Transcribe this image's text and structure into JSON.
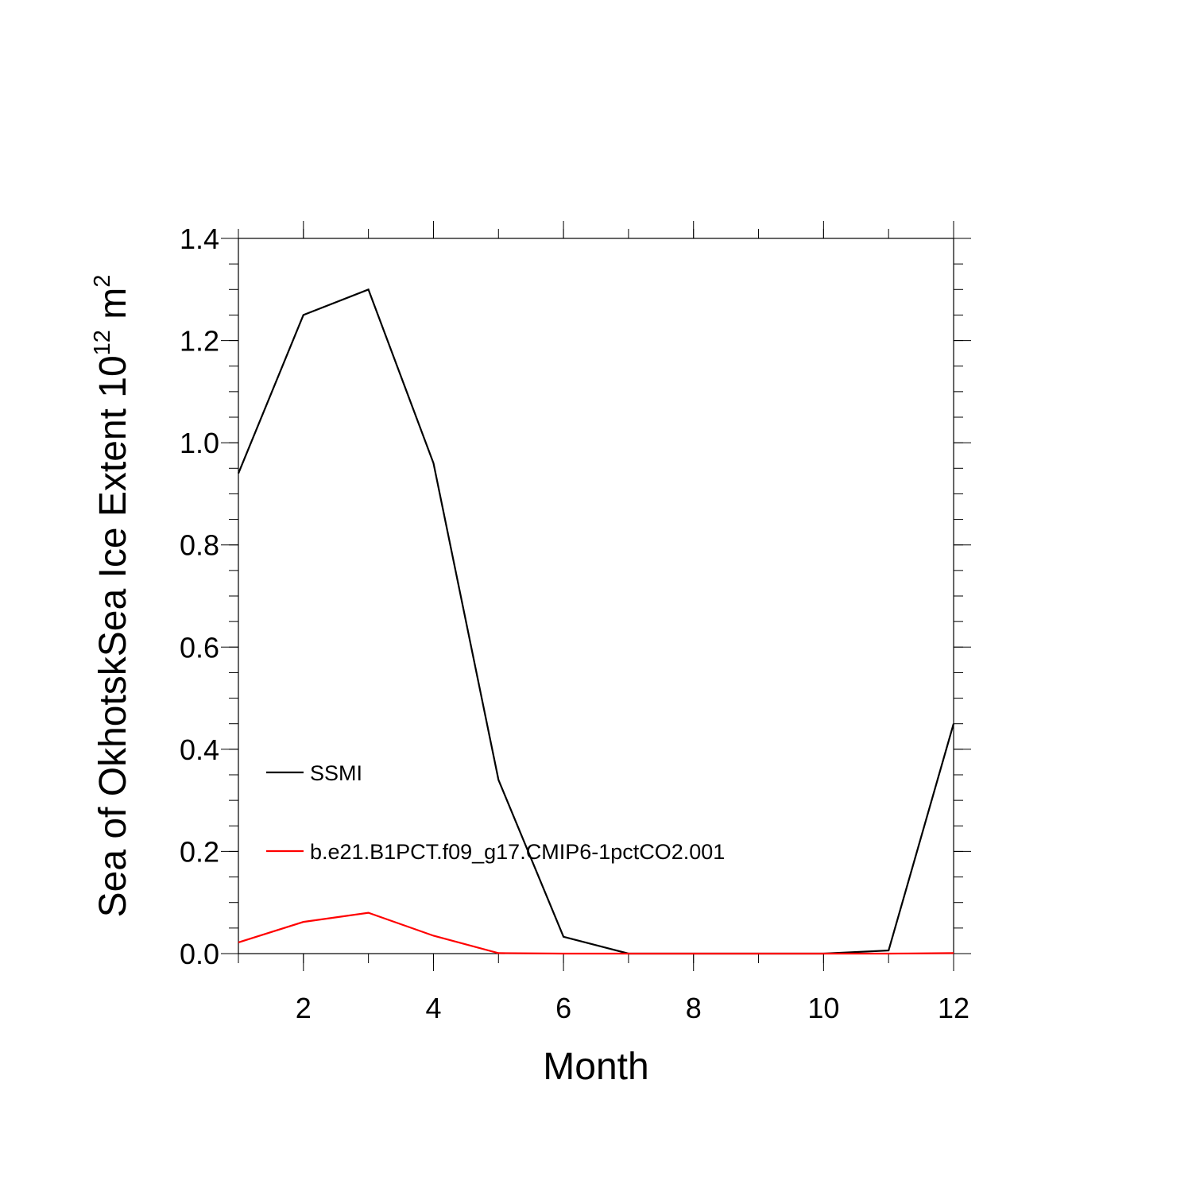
{
  "chart_data": {
    "type": "line",
    "xlabel": "Month",
    "ylabel": {
      "prefix": "Sea of OkhotskSea Ice Extent 10",
      "exponent1": "12",
      "unit": " m",
      "exponent2": "2"
    },
    "xlim": [
      1,
      12
    ],
    "ylim": [
      0,
      1.4
    ],
    "x_major_ticks": [
      2,
      4,
      6,
      8,
      10,
      12
    ],
    "x_tick_labels": [
      "2",
      "4",
      "6",
      "8",
      "10",
      "12"
    ],
    "y_major_ticks": [
      0,
      0.2,
      0.4,
      0.6,
      0.8,
      1.0,
      1.2,
      1.4
    ],
    "y_tick_labels": [
      "0.0",
      "0.2",
      "0.4",
      "0.6",
      "0.8",
      "1.0",
      "1.2",
      "1.4"
    ],
    "grid": false,
    "legend_position": "lower-left inside plot",
    "x": [
      1,
      2,
      3,
      4,
      5,
      6,
      7,
      8,
      9,
      10,
      11,
      12
    ],
    "series": [
      {
        "name": "SSMI",
        "color": "#000000",
        "values": [
          0.94,
          1.25,
          1.3,
          0.96,
          0.34,
          0.033,
          0.0,
          0.0,
          0.0,
          0.0,
          0.006,
          0.45
        ]
      },
      {
        "name": "b.e21.B1PCT.f09_g17.CMIP6-1pctCO2.001",
        "color": "#ff0000",
        "values": [
          0.022,
          0.062,
          0.08,
          0.035,
          0.001,
          0.0,
          0.0,
          0.0,
          0.0,
          0.0,
          0.0,
          0.001
        ]
      }
    ]
  }
}
